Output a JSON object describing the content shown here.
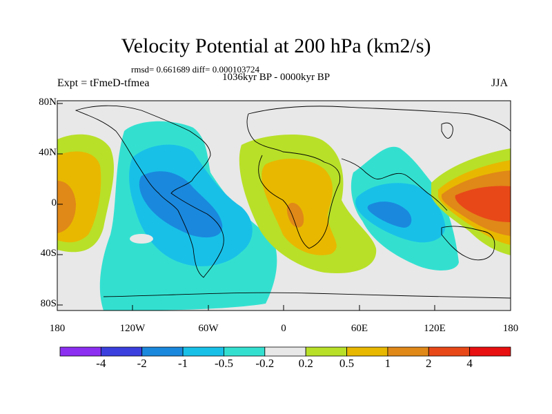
{
  "title": "Velocity Potential at 200 hPa (km2/s)",
  "stats": "rmsd= 0.661689 diff= 0.000103724",
  "experiment": "Expt = tFmeD-tfmea",
  "period": "1036kyr BP - 0000kyr BP",
  "season": "JJA",
  "map": {
    "lat_ticks": [
      "80N",
      "40N",
      "0",
      "40S",
      "80S"
    ],
    "lon_ticks": [
      "180",
      "120W",
      "60W",
      "0",
      "60E",
      "120E",
      "180"
    ],
    "ocean_color": "#e8e8e8"
  },
  "colorbar": {
    "colors": [
      "#8c2ff0",
      "#3a3fde",
      "#1a88dd",
      "#18c0e8",
      "#33e0d0",
      "#e8e8e8",
      "#b8e028",
      "#e8b800",
      "#e08818",
      "#e84818",
      "#e81010"
    ],
    "labels": [
      "-4",
      "-2",
      "-1",
      "-0.5",
      "-0.2",
      "0.2",
      "0.5",
      "1",
      "2",
      "4"
    ]
  }
}
